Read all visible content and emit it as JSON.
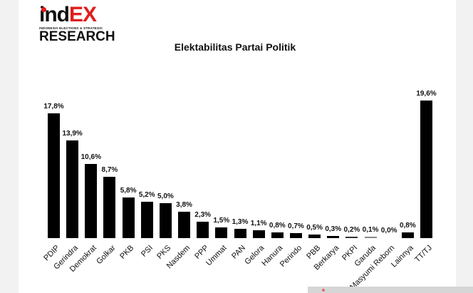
{
  "logo": {
    "ind": "ind",
    "ex": "EX",
    "subtitle": "INDONESIA ELECTIONS & STRATEGIC",
    "research": "RESEARCH"
  },
  "colors": {
    "bar": "#000000",
    "logo_accent": "#e11d1d",
    "background": "#ffffff",
    "outer_background": "#f2f2f2"
  },
  "chart_data": {
    "type": "bar",
    "title": "Elektabilitas Partai Politik",
    "xlabel": "",
    "ylabel": "",
    "grid": false,
    "legend": null,
    "ylim": [
      0,
      20
    ],
    "categories": [
      "PDIP",
      "Gerindra",
      "Demokrat",
      "Golkar",
      "PKB",
      "PSI",
      "PKS",
      "Nasdem",
      "PPP",
      "Ummat",
      "PAN",
      "Gelora",
      "Hanura",
      "Perindo",
      "PBB",
      "Berkarya",
      "PKPI",
      "Garuda",
      "Masyumi Reborn",
      "Lainnya",
      "TT/TJ"
    ],
    "values": [
      17.8,
      13.9,
      10.6,
      8.7,
      5.8,
      5.2,
      5.0,
      3.8,
      2.3,
      1.5,
      1.3,
      1.1,
      0.8,
      0.7,
      0.5,
      0.3,
      0.2,
      0.1,
      0.0,
      0.8,
      19.6
    ],
    "value_labels": [
      "17,8%",
      "13,9%",
      "10,6%",
      "8,7%",
      "5,8%",
      "5,2%",
      "5,0%",
      "3,8%",
      "2,3%",
      "1,5%",
      "1,3%",
      "1,1%",
      "0,8%",
      "0,7%",
      "0,5%",
      "0,3%",
      "0,2%",
      "0,1%",
      "0,0%",
      "0,8%",
      "19,6%"
    ],
    "unit": "%"
  }
}
